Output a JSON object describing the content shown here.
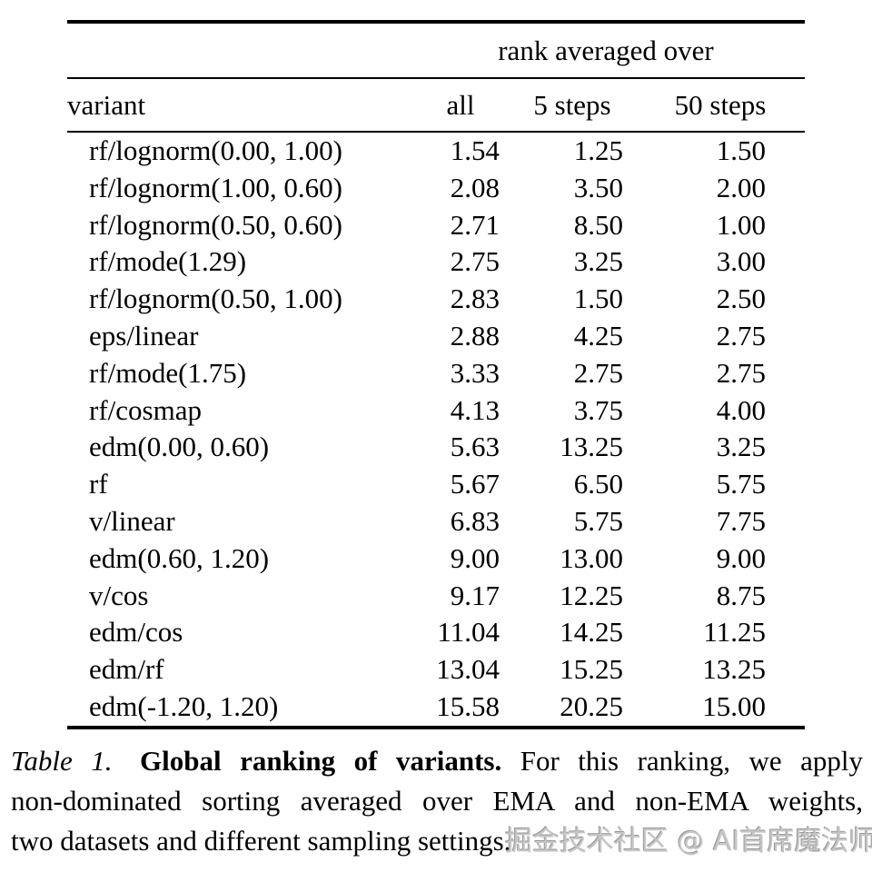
{
  "table": {
    "group_header": "rank averaged over",
    "columns": {
      "variant": "variant",
      "all": "all",
      "s5": "5 steps",
      "s50": "50 steps"
    },
    "rows": [
      {
        "variant": "rf/lognorm(0.00, 1.00)",
        "all": "1.54",
        "s5": "1.25",
        "s50": "1.50"
      },
      {
        "variant": "rf/lognorm(1.00, 0.60)",
        "all": "2.08",
        "s5": "3.50",
        "s50": "2.00"
      },
      {
        "variant": "rf/lognorm(0.50, 0.60)",
        "all": "2.71",
        "s5": "8.50",
        "s50": "1.00"
      },
      {
        "variant": "rf/mode(1.29)",
        "all": "2.75",
        "s5": "3.25",
        "s50": "3.00"
      },
      {
        "variant": "rf/lognorm(0.50, 1.00)",
        "all": "2.83",
        "s5": "1.50",
        "s50": "2.50"
      },
      {
        "variant": "eps/linear",
        "all": "2.88",
        "s5": "4.25",
        "s50": "2.75"
      },
      {
        "variant": "rf/mode(1.75)",
        "all": "3.33",
        "s5": "2.75",
        "s50": "2.75"
      },
      {
        "variant": "rf/cosmap",
        "all": "4.13",
        "s5": "3.75",
        "s50": "4.00"
      },
      {
        "variant": "edm(0.00, 0.60)",
        "all": "5.63",
        "s5": "13.25",
        "s50": "3.25"
      },
      {
        "variant": "rf",
        "all": "5.67",
        "s5": "6.50",
        "s50": "5.75"
      },
      {
        "variant": "v/linear",
        "all": "6.83",
        "s5": "5.75",
        "s50": "7.75"
      },
      {
        "variant": "edm(0.60, 1.20)",
        "all": "9.00",
        "s5": "13.00",
        "s50": "9.00"
      },
      {
        "variant": "v/cos",
        "all": "9.17",
        "s5": "12.25",
        "s50": "8.75"
      },
      {
        "variant": "edm/cos",
        "all": "11.04",
        "s5": "14.25",
        "s50": "11.25"
      },
      {
        "variant": "edm/rf",
        "all": "13.04",
        "s5": "15.25",
        "s50": "13.25"
      },
      {
        "variant": "edm(-1.20, 1.20)",
        "all": "15.58",
        "s5": "20.25",
        "s50": "15.00"
      }
    ]
  },
  "caption": {
    "label": "Table 1.",
    "title": "Global ranking of variants.",
    "line1_rest": "For this ranking, we apply",
    "line2": "non-dominated sorting averaged over EMA and non-EMA weights,",
    "line3": "two datasets and different sampling settings."
  },
  "watermark": {
    "text": "掘金技术社区 @ AI首席魔法师可可"
  },
  "colors": {
    "text": "#000000",
    "background": "#ffffff",
    "rule": "#000000",
    "watermark": "#c6c6c6"
  }
}
